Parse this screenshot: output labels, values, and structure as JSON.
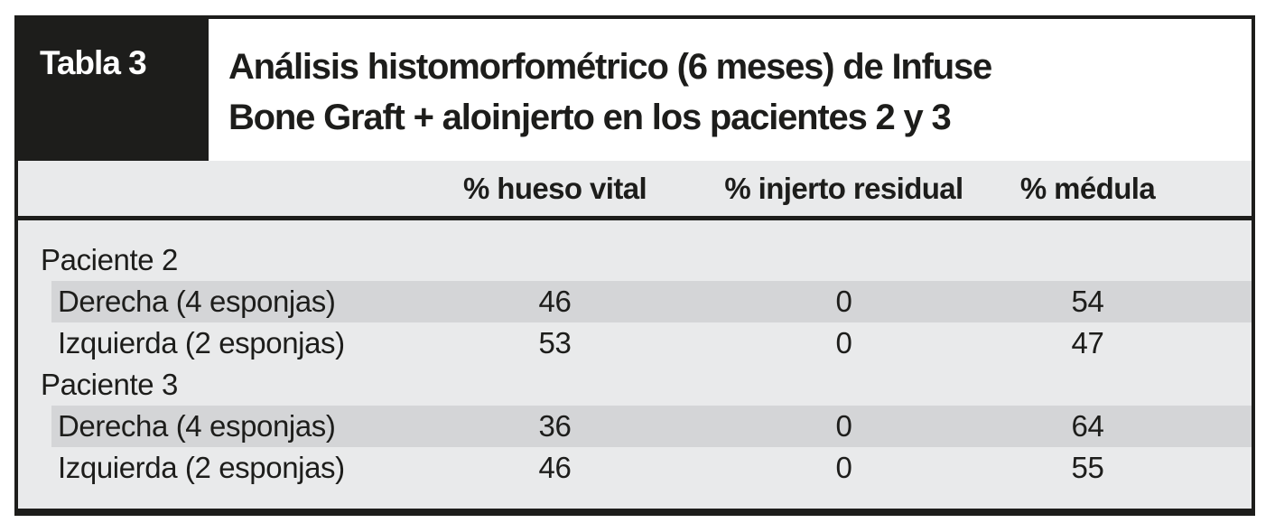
{
  "figure": {
    "label": "Tabla 3",
    "title_line1": "Análisis histomorfométrico (6 meses) de Infuse",
    "title_line2": "Bone Graft + aloinjerto en los pacientes 2 y 3"
  },
  "columns": [
    "% hueso vital",
    "% injerto residual",
    "% médula"
  ],
  "rows": [
    {
      "type": "group",
      "label": "Paciente 2"
    },
    {
      "type": "data",
      "striped": true,
      "label": "Derecha (4 esponjas)",
      "values": [
        "46",
        "0",
        "54"
      ]
    },
    {
      "type": "data",
      "striped": false,
      "label": "Izquierda (2 esponjas)",
      "values": [
        "53",
        "0",
        "47"
      ]
    },
    {
      "type": "group",
      "label": "Paciente 3"
    },
    {
      "type": "data",
      "striped": true,
      "label": "Derecha (4 esponjas)",
      "values": [
        "36",
        "0",
        "64"
      ]
    },
    {
      "type": "data",
      "striped": false,
      "label": "Izquierda (2 esponjas)",
      "values": [
        "46",
        "0",
        "55"
      ]
    }
  ],
  "colors": {
    "ink_black": "#1d1d1b",
    "band_gray": "#e9eaeb",
    "stripe_gray": "#d4d5d7",
    "label_text": "#ffffff"
  }
}
